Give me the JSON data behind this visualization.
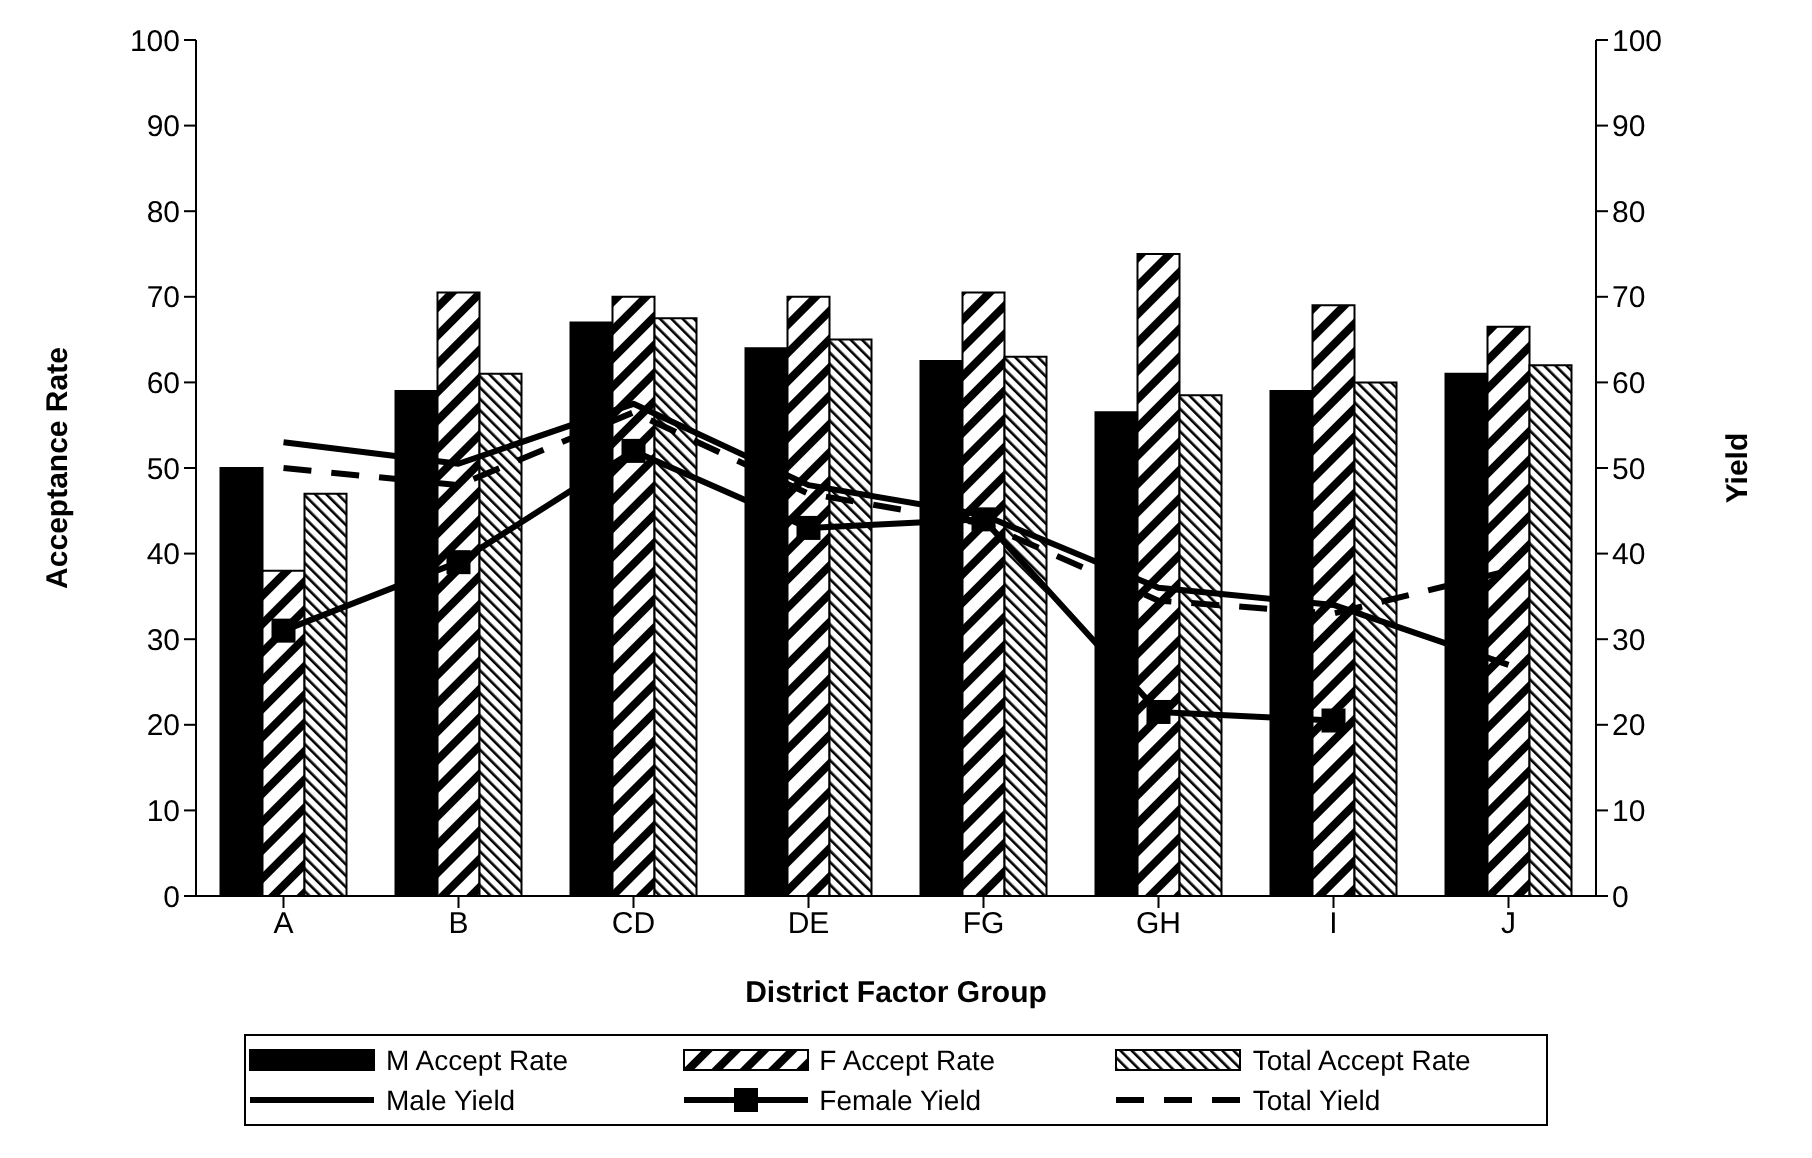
{
  "chart_data": {
    "type": "bar",
    "xlabel": "District Factor Group",
    "ylabel": "Acceptance Rate",
    "y2label": "Yield",
    "categories": [
      "A",
      "B",
      "CD",
      "DE",
      "FG",
      "GH",
      "I",
      "J"
    ],
    "series": [
      {
        "name": "M Accept Rate",
        "color": "#000000",
        "values": [
          50,
          59,
          67,
          64,
          62.5,
          56.5,
          59,
          61
        ]
      },
      {
        "name": "F Accept Rate",
        "color": "#000000",
        "values": [
          38,
          70.5,
          70,
          70,
          70.5,
          75,
          69,
          66.5
        ]
      },
      {
        "name": "Total Accept Rate",
        "color": "#000000",
        "values": [
          47,
          61,
          67.5,
          65,
          63,
          58.5,
          60,
          62
        ]
      },
      {
        "name": "Male Yield",
        "type": "line",
        "axis": "y2",
        "color": "#000000",
        "marker": "none",
        "line_style": "solid",
        "values": [
          53,
          50.5,
          57.5,
          48,
          44.5,
          36,
          34,
          27
        ]
      },
      {
        "name": "Female Yield",
        "type": "line",
        "axis": "y2",
        "color": "#000000",
        "marker": "square",
        "line_style": "solid",
        "values": [
          31,
          39,
          52,
          43,
          44,
          21.5,
          20.5,
          null
        ]
      },
      {
        "name": "Total Yield",
        "type": "line",
        "axis": "y2",
        "color": "#000000",
        "marker": "none",
        "line_style": "dashed",
        "values": [
          50,
          48,
          56.5,
          47,
          43.5,
          34.5,
          33,
          38
        ]
      }
    ],
    "ylim": [
      0,
      100
    ],
    "yticks": [
      0,
      10,
      20,
      30,
      40,
      50,
      60,
      70,
      80,
      90,
      100
    ],
    "y2lim": [
      0,
      100
    ],
    "y2ticks": [
      0,
      10,
      20,
      30,
      40,
      50,
      60,
      70,
      80,
      90,
      100
    ],
    "grid": false,
    "legend": "bottom"
  }
}
